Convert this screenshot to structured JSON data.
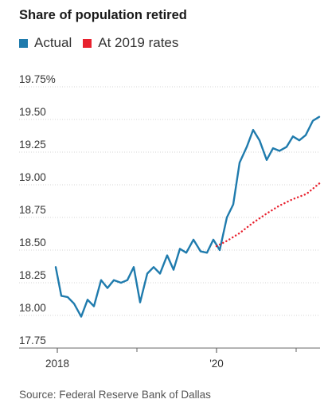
{
  "title": "Share of population retired",
  "source": "Source: Federal Reserve Bank of Dallas",
  "legend": [
    {
      "label": "Actual",
      "color": "#1f7bad"
    },
    {
      "label": "At 2019 rates",
      "color": "#e8212e"
    }
  ],
  "chart_data": {
    "type": "line",
    "title": "Share of population retired",
    "y_tick_labels": [
      "19.75%",
      "19.50",
      "19.25",
      "19.00",
      "18.75",
      "18.50",
      "18.25",
      "18.00",
      "17.75"
    ],
    "y_ticks": [
      19.75,
      19.5,
      19.25,
      19.0,
      18.75,
      18.5,
      18.25,
      18.0,
      17.75
    ],
    "ylim": [
      17.75,
      19.75
    ],
    "x_tick_labels": [
      {
        "label": "2018",
        "year": 2018
      },
      {
        "label": "'20",
        "year": 2020
      }
    ],
    "x_minor_ticks": [
      2019,
      2021
    ],
    "xlim": [
      2018,
      2021.3
    ],
    "grid": "horizontal",
    "series": [
      {
        "name": "Actual",
        "style": "solid",
        "color": "#1f7bad",
        "x": [
          2017.98,
          2018.05,
          2018.13,
          2018.21,
          2018.3,
          2018.38,
          2018.46,
          2018.55,
          2018.63,
          2018.71,
          2018.8,
          2018.88,
          2018.96,
          2019.04,
          2019.13,
          2019.21,
          2019.29,
          2019.38,
          2019.46,
          2019.54,
          2019.62,
          2019.71,
          2019.8,
          2019.88,
          2019.96,
          2020.04,
          2020.13,
          2020.21,
          2020.29,
          2020.38,
          2020.46,
          2020.54,
          2020.63,
          2020.71,
          2020.79,
          2020.88,
          2020.96,
          2021.04,
          2021.12,
          2021.21,
          2021.29
        ],
        "y": [
          18.37,
          18.15,
          18.14,
          18.09,
          17.99,
          18.12,
          18.07,
          18.27,
          18.21,
          18.27,
          18.25,
          18.27,
          18.37,
          18.1,
          18.32,
          18.37,
          18.32,
          18.46,
          18.35,
          18.51,
          18.48,
          18.58,
          18.49,
          18.48,
          18.58,
          18.5,
          18.75,
          18.85,
          19.17,
          19.29,
          19.42,
          19.34,
          19.19,
          19.28,
          19.26,
          19.29,
          19.37,
          19.34,
          19.38,
          19.49,
          19.52
        ]
      },
      {
        "name": "At 2019 rates",
        "style": "dotted",
        "color": "#e8212e",
        "x": [
          2020.0,
          2020.13,
          2020.29,
          2020.46,
          2020.63,
          2020.79,
          2020.96,
          2021.13,
          2021.29
        ],
        "y": [
          18.53,
          18.57,
          18.63,
          18.71,
          18.78,
          18.84,
          18.89,
          18.93,
          19.01
        ]
      }
    ]
  }
}
